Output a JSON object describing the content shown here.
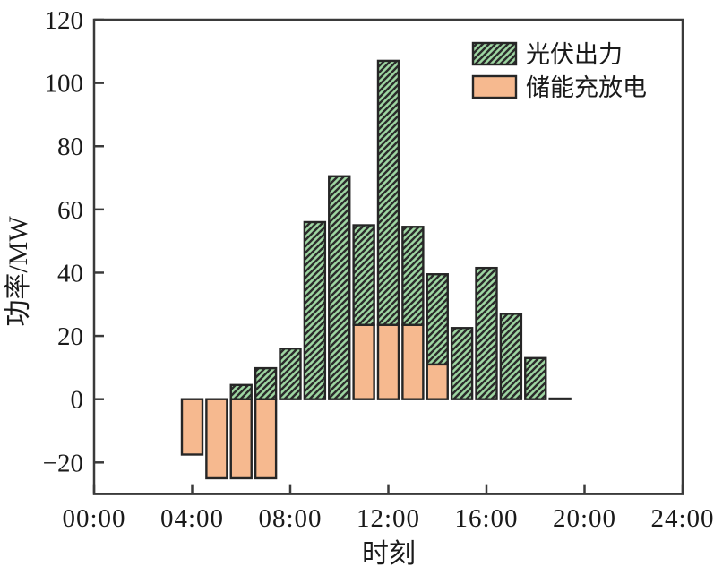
{
  "chart_data": {
    "type": "bar",
    "stacked": true,
    "title": "",
    "xlabel": "时刻",
    "ylabel": "功率/MW",
    "xlim_hours": [
      0,
      24
    ],
    "ylim": [
      -30,
      120
    ],
    "x_tick_hours": [
      0,
      4,
      8,
      12,
      16,
      20,
      24
    ],
    "x_tick_labels": [
      "00:00",
      "04:00",
      "08:00",
      "12:00",
      "16:00",
      "20:00",
      "24:00"
    ],
    "y_ticks": [
      -20,
      0,
      20,
      40,
      60,
      80,
      100,
      120
    ],
    "grid": false,
    "legend_position": "upper-right-inside",
    "colors": {
      "pv_fill": "#9ed6a2",
      "hatch": "#2b2b2b",
      "storage_fill": "#f6b98f",
      "bar_edge": "#262626",
      "axis": "#3a3a3a",
      "text": "#1a1a1a"
    },
    "series": [
      {
        "name": "光伏出力",
        "key": "pv",
        "style": "green-hatched"
      },
      {
        "name": "储能充放电",
        "key": "storage",
        "style": "orange-solid"
      }
    ],
    "bars": [
      {
        "hour": 4,
        "pv": 0,
        "storage": -17.5
      },
      {
        "hour": 5,
        "pv": 0,
        "storage": -25
      },
      {
        "hour": 6,
        "pv": 4.5,
        "storage": -25
      },
      {
        "hour": 7,
        "pv": 9.8,
        "storage": -25
      },
      {
        "hour": 8,
        "pv": 16,
        "storage": 0
      },
      {
        "hour": 9,
        "pv": 56,
        "storage": 0
      },
      {
        "hour": 10,
        "pv": 70.5,
        "storage": 0
      },
      {
        "hour": 11,
        "pv": 31.5,
        "storage": 23.5
      },
      {
        "hour": 12,
        "pv": 83.5,
        "storage": 23.5
      },
      {
        "hour": 13,
        "pv": 31,
        "storage": 23.5
      },
      {
        "hour": 14,
        "pv": 28.5,
        "storage": 11
      },
      {
        "hour": 15,
        "pv": 22.5,
        "storage": 0
      },
      {
        "hour": 16,
        "pv": 41.5,
        "storage": 0
      },
      {
        "hour": 17,
        "pv": 27,
        "storage": 0
      },
      {
        "hour": 18,
        "pv": 13,
        "storage": 0
      },
      {
        "hour": 19,
        "pv": 0.2,
        "storage": 0
      }
    ]
  }
}
